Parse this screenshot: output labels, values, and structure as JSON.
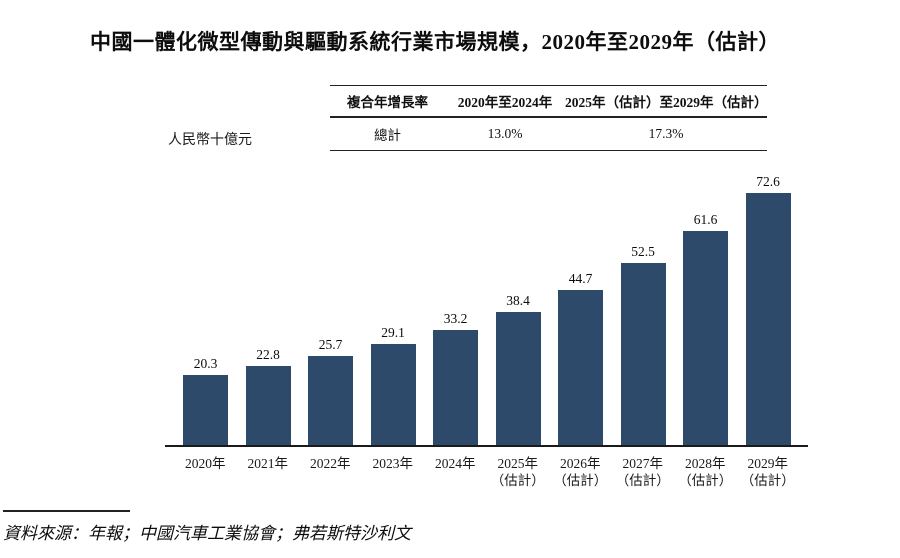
{
  "title": "中國一體化微型傳動與驅動系統行業市場規模，2020年至2029年（估計）",
  "unit_label": "人民幣十億元",
  "cagr_table": {
    "headers": [
      "複合年增長率",
      "2020年至2024年",
      "2025年（估計）至2029年（估計）"
    ],
    "row": {
      "label": "總計",
      "period1": "13.0%",
      "period2": "17.3%"
    }
  },
  "source": "資料來源：年報；中國汽車工業協會；弗若斯特沙利文",
  "chart_data": {
    "type": "bar",
    "title": "中國一體化微型傳動與驅動系統行業市場規模，2020年至2029年（估計）",
    "ylabel": "人民幣十億元",
    "xlabel": "",
    "categories": [
      "2020年",
      "2021年",
      "2022年",
      "2023年",
      "2024年",
      "2025年\n（估計）",
      "2026年\n（估計）",
      "2027年\n（估計）",
      "2028年\n（估計）",
      "2029年\n（估計）"
    ],
    "values": [
      20.3,
      22.8,
      25.7,
      29.1,
      33.2,
      38.4,
      44.7,
      52.5,
      61.6,
      72.6
    ],
    "ylim": [
      0,
      80
    ],
    "grid": false,
    "legend": "none",
    "data_labels": true,
    "bar_color": "#2e4a6b",
    "axis_color": "#1a1a1a",
    "cagr_2020_2024": "13.0%",
    "cagr_2025_2029": "17.3%"
  }
}
